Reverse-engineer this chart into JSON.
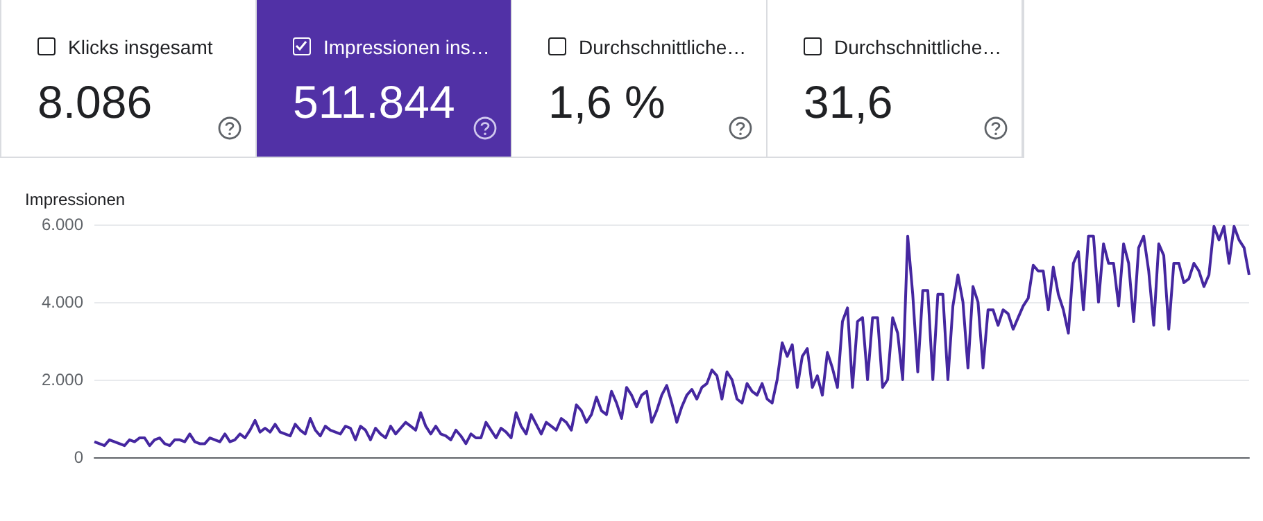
{
  "chart_data": [
    {
      "type": "other",
      "annotations": [
        "Klicks insgesamt",
        "8.086",
        "Impressionen ins…",
        "511.844",
        "Durchschnittliche…",
        "1,6 %",
        "Durchschnittliche…",
        "31,6"
      ],
      "colors": [
        "#ffffff",
        "#5131a6",
        "#ffffff",
        "#ffffff"
      ]
    },
    {
      "type": "line",
      "ylabel": "Impressionen",
      "ylim": [
        0,
        6000
      ],
      "yticks": [
        0,
        {
          "value": 2000,
          "label": "2.000"
        },
        {
          "value": 4000,
          "label": "4.000"
        },
        {
          "value": 6000,
          "label": "6.000"
        }
      ],
      "grid": "y",
      "tick_labels": "y",
      "line_style": "solid",
      "categories": [
        null,
        null,
        null,
        null,
        null,
        null,
        null,
        null,
        null,
        null,
        null,
        null,
        null,
        null,
        null,
        null,
        null,
        null,
        null,
        null,
        null,
        null,
        null,
        null,
        null,
        null,
        null,
        null,
        null,
        null,
        null,
        null,
        null,
        null,
        null,
        null,
        null,
        null,
        null,
        null,
        null,
        null,
        null,
        null,
        null,
        null,
        null,
        null,
        null,
        null,
        null,
        null,
        null,
        null,
        null,
        null,
        null,
        null,
        null,
        null,
        null,
        null,
        null,
        null,
        null,
        null,
        null,
        null,
        null,
        null,
        null,
        null,
        null,
        null,
        null,
        null,
        null,
        null,
        null,
        null,
        null,
        null,
        null,
        null,
        null,
        null,
        null,
        null,
        null,
        null,
        null,
        null,
        null,
        null,
        null,
        null,
        null,
        null,
        null,
        null,
        null,
        null,
        null,
        null,
        null,
        null,
        null,
        null,
        null,
        null,
        null,
        null,
        null,
        null,
        null,
        null,
        null,
        null,
        null,
        null,
        null,
        null,
        null,
        null,
        null,
        null,
        null,
        null,
        null,
        null,
        null,
        null,
        null,
        null,
        null,
        null,
        null,
        null,
        null,
        null,
        null,
        null,
        null,
        null,
        null,
        null,
        null,
        null,
        null,
        null,
        null,
        null,
        null,
        null,
        null,
        null,
        null,
        null,
        null,
        null,
        null,
        null,
        null,
        null,
        null,
        null,
        null,
        null,
        null,
        null,
        null,
        null,
        null,
        null,
        null,
        null,
        null,
        null,
        null,
        null,
        null,
        null,
        null,
        null,
        null,
        null,
        null,
        null,
        null,
        null,
        null,
        null,
        null,
        null,
        null,
        null,
        null,
        null,
        null,
        null,
        null,
        null,
        null,
        null,
        null,
        null,
        null,
        null,
        null,
        null,
        null,
        null,
        null,
        null,
        null,
        null,
        null,
        null,
        null,
        null,
        null,
        null,
        null,
        null,
        null,
        null,
        null,
        null,
        null,
        null,
        null
      ],
      "series": [
        {
          "color": "#4527a0",
          "values": [
            400,
            350,
            300,
            450,
            400,
            350,
            300,
            450,
            400,
            500,
            500,
            300,
            450,
            500,
            350,
            300,
            450,
            450,
            400,
            600,
            400,
            350,
            350,
            500,
            450,
            400,
            600,
            400,
            450,
            600,
            500,
            700,
            950,
            650,
            750,
            650,
            850,
            650,
            600,
            550,
            850,
            700,
            600,
            1000,
            700,
            550,
            800,
            700,
            650,
            600,
            800,
            750,
            450,
            800,
            700,
            450,
            750,
            600,
            500,
            800,
            600,
            750,
            900,
            800,
            700,
            1150,
            800,
            600,
            800,
            600,
            550,
            450,
            700,
            550,
            350,
            600,
            500,
            500,
            900,
            700,
            500,
            750,
            650,
            500,
            1150,
            800,
            600,
            1100,
            850,
            600,
            900,
            800,
            700,
            1000,
            900,
            700,
            1350,
            1200,
            900,
            1100,
            1550,
            1200,
            1100,
            1700,
            1400,
            1000,
            1800,
            1600,
            1300,
            1600,
            1700,
            900,
            1200,
            1600,
            1850,
            1400,
            900,
            1300,
            1600,
            1750,
            1500,
            1800,
            1900,
            2250,
            2100,
            1500,
            2200,
            2000,
            1500,
            1400,
            1900,
            1700,
            1600,
            1900,
            1500,
            1400,
            2000,
            2950,
            2600,
            2900,
            1800,
            2600,
            2800,
            1800,
            2100,
            1600,
            2700,
            2300,
            1800,
            3500,
            3850,
            1800,
            3500,
            3600,
            2000,
            3600,
            3600,
            1800,
            2000,
            3600,
            3200,
            2000,
            5700,
            4200,
            2200,
            4300,
            4300,
            2000,
            4200,
            4200,
            2000,
            3900,
            4700,
            4000,
            2300,
            4400,
            4000,
            2300,
            3800,
            3800,
            3400,
            3800,
            3700,
            3300,
            3600,
            3900,
            4100,
            4950,
            4800,
            4800,
            3800,
            4900,
            4200,
            3800,
            3200,
            5000,
            5300,
            3800,
            5700,
            5700,
            4000,
            5500,
            5000,
            5000,
            3900,
            5500,
            5000,
            3500,
            5400,
            5700,
            4800,
            3400,
            5500,
            5200,
            3300,
            5000,
            5000,
            4500,
            4600,
            5000,
            4800,
            4400,
            4700,
            5950,
            5600,
            5950,
            5000,
            5950,
            5600,
            5400,
            4700
          ]
        }
      ]
    }
  ]
}
